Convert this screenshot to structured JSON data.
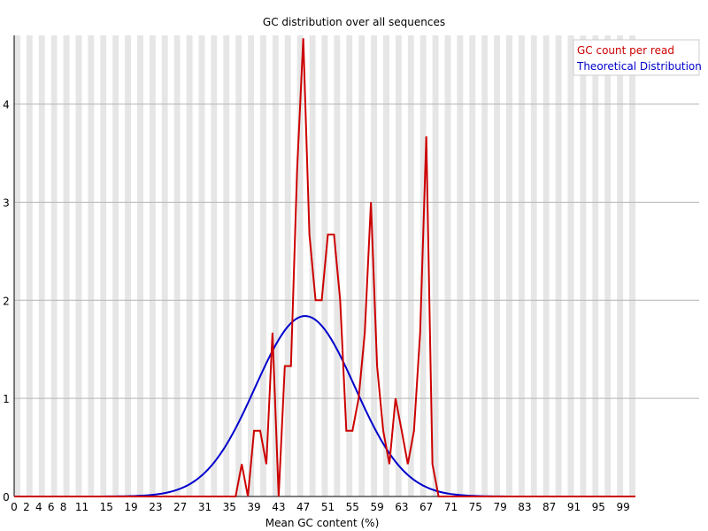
{
  "chart_data": {
    "type": "line",
    "title": "GC distribution over all sequences",
    "xlabel": "Mean GC content (%)",
    "ylabel": "",
    "xlim": [
      0,
      101
    ],
    "ylim": [
      0,
      4.7
    ],
    "y_ticks": [
      0,
      1,
      2,
      3,
      4
    ],
    "x_tick_labels": [
      0,
      2,
      4,
      6,
      8,
      11,
      15,
      19,
      23,
      27,
      31,
      35,
      39,
      43,
      47,
      51,
      55,
      59,
      63,
      67,
      71,
      75,
      79,
      83,
      87,
      91,
      95,
      99
    ],
    "grid": true,
    "legend_position": "top-right",
    "series": [
      {
        "name": "GC count per read",
        "color": "#cc0000",
        "x": [
          0,
          1,
          2,
          3,
          4,
          5,
          6,
          7,
          8,
          9,
          10,
          11,
          12,
          13,
          14,
          15,
          16,
          17,
          18,
          19,
          20,
          21,
          22,
          23,
          24,
          25,
          26,
          27,
          28,
          29,
          30,
          31,
          32,
          33,
          34,
          35,
          36,
          37,
          38,
          39,
          40,
          41,
          42,
          43,
          44,
          45,
          46,
          47,
          48,
          49,
          50,
          51,
          52,
          53,
          54,
          55,
          56,
          57,
          58,
          59,
          60,
          61,
          62,
          63,
          64,
          65,
          66,
          67,
          68,
          69,
          70,
          71,
          72,
          73,
          74,
          75,
          76,
          77,
          78,
          79,
          80,
          81,
          82,
          83,
          84,
          85,
          86,
          87,
          88,
          89,
          90,
          91,
          92,
          93,
          94,
          95,
          96,
          97,
          98,
          99,
          100,
          101
        ],
        "y": [
          0,
          0,
          0,
          0,
          0,
          0,
          0,
          0,
          0,
          0,
          0,
          0,
          0,
          0,
          0,
          0,
          0,
          0,
          0,
          0,
          0,
          0,
          0,
          0,
          0,
          0,
          0,
          0,
          0,
          0,
          0,
          0,
          0,
          0,
          0,
          0,
          0,
          0.33,
          0,
          0.67,
          0.67,
          0.33,
          1.67,
          0,
          1.33,
          1.33,
          3.33,
          4.67,
          2.67,
          2.0,
          2.0,
          2.67,
          2.67,
          2.0,
          0.67,
          0.67,
          1.0,
          1.67,
          3.0,
          1.33,
          0.67,
          0.33,
          1.0,
          0.67,
          0.33,
          0.67,
          1.67,
          3.67,
          0.33,
          0,
          0,
          0,
          0,
          0,
          0,
          0,
          0,
          0,
          0,
          0,
          0,
          0,
          0,
          0,
          0,
          0,
          0,
          0,
          0,
          0,
          0,
          0,
          0,
          0,
          0,
          0,
          0,
          0,
          0,
          0,
          0,
          0
        ]
      },
      {
        "name": "Theoretical Distribution",
        "color": "#0000cc",
        "mean": 47.3,
        "sd": 8.1,
        "peak": 1.84
      }
    ]
  }
}
